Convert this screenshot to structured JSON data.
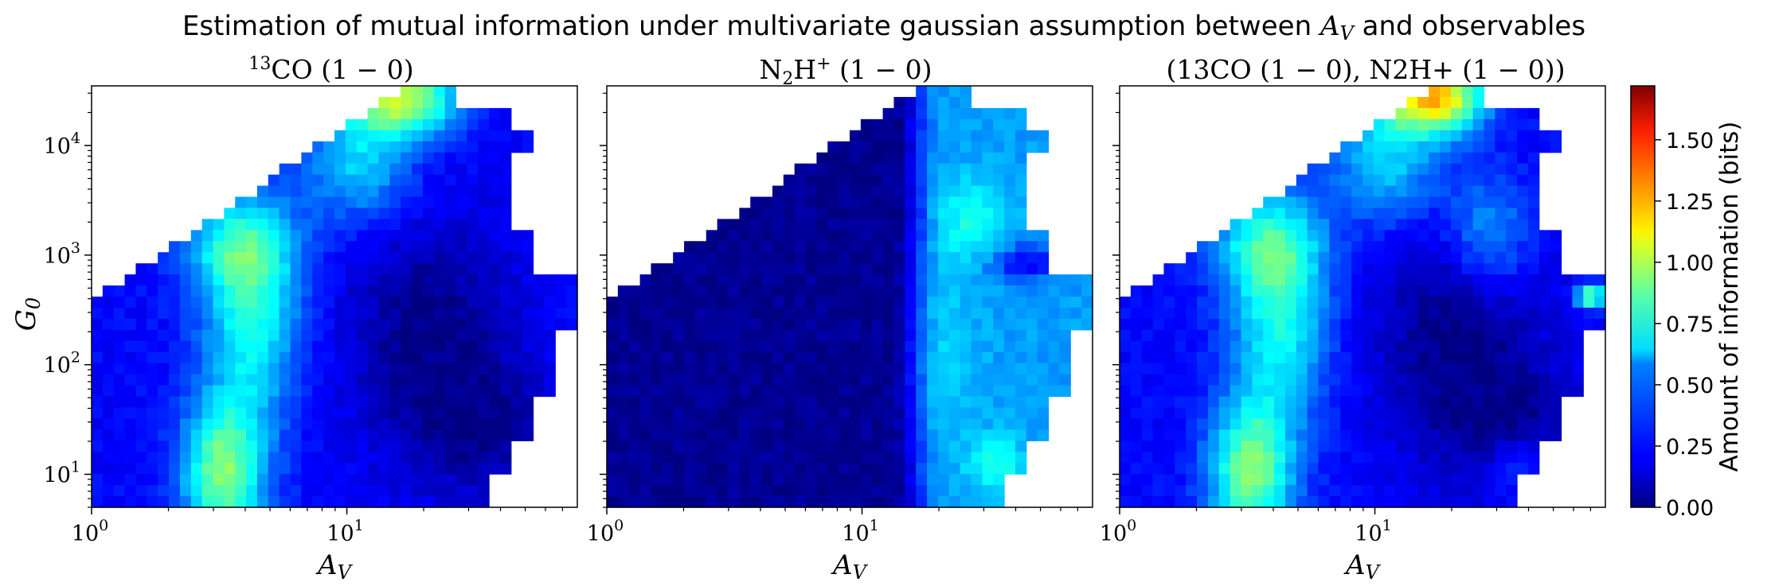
{
  "title": "Estimation of mutual information under multivariate gaussian assumption between A_V and observables",
  "title_parts": {
    "prefix": "Estimation of mutual information under multivariate gaussian assumption between ",
    "var": "A",
    "var_sub": "V",
    "suffix": " and observables"
  },
  "colorbar": {
    "label": "Amount of information (bits)",
    "range": [
      0,
      1.72
    ],
    "ticks": [
      "0.00",
      "0.25",
      "0.50",
      "0.75",
      "1.00",
      "1.25",
      "1.50"
    ],
    "colormap": "jet"
  },
  "chart_data": [
    {
      "type": "heatmap",
      "title": "13CO (1 − 0)",
      "title_parts": {
        "sup": "13",
        "main": "CO (1 − 0)"
      },
      "xlabel": "A_V",
      "ylabel": "G_0",
      "xscale": "log",
      "yscale": "log",
      "xlim": [
        1,
        80
      ],
      "ylim": [
        5,
        35000
      ],
      "x_ticks": [
        "10^0",
        "10^1"
      ],
      "y_ticks": [
        "10^1",
        "10^2",
        "10^3",
        "10^4"
      ],
      "peaks": [
        {
          "A_V": 3.6,
          "G_0": 7,
          "value": 0.95
        },
        {
          "A_V": 5,
          "G_0": 800,
          "value": 0.7
        },
        {
          "A_V": 18,
          "G_0": 22000,
          "value": 1.0
        }
      ]
    },
    {
      "type": "heatmap",
      "title": "N2H+ (1 − 0)",
      "title_parts": {
        "n": "N",
        "sub": "2",
        "h": "H",
        "sup": "+",
        "rest": " (1 − 0)"
      },
      "xlabel": "A_V",
      "xscale": "log",
      "yscale": "log",
      "xlim": [
        1,
        80
      ],
      "ylim": [
        5,
        35000
      ],
      "x_ticks": [
        "10^0",
        "10^1"
      ],
      "peaks": [
        {
          "A_V": 22,
          "G_0": 3000,
          "value": 0.65
        },
        {
          "A_V": 40,
          "G_0": 10,
          "value": 0.7
        }
      ]
    },
    {
      "type": "heatmap",
      "title": "(13CO (1 − 0), N2H+ (1 − 0))",
      "xlabel": "A_V",
      "xscale": "log",
      "yscale": "log",
      "xlim": [
        1,
        80
      ],
      "ylim": [
        5,
        35000
      ],
      "x_ticks": [
        "10^0",
        "10^1"
      ],
      "peaks": [
        {
          "A_V": 3.6,
          "G_0": 7,
          "value": 0.95
        },
        {
          "A_V": 5,
          "G_0": 800,
          "value": 0.7
        },
        {
          "A_V": 22,
          "G_0": 22000,
          "value": 1.15
        },
        {
          "A_V": 70,
          "G_0": 500,
          "value": 1.0
        }
      ]
    }
  ]
}
